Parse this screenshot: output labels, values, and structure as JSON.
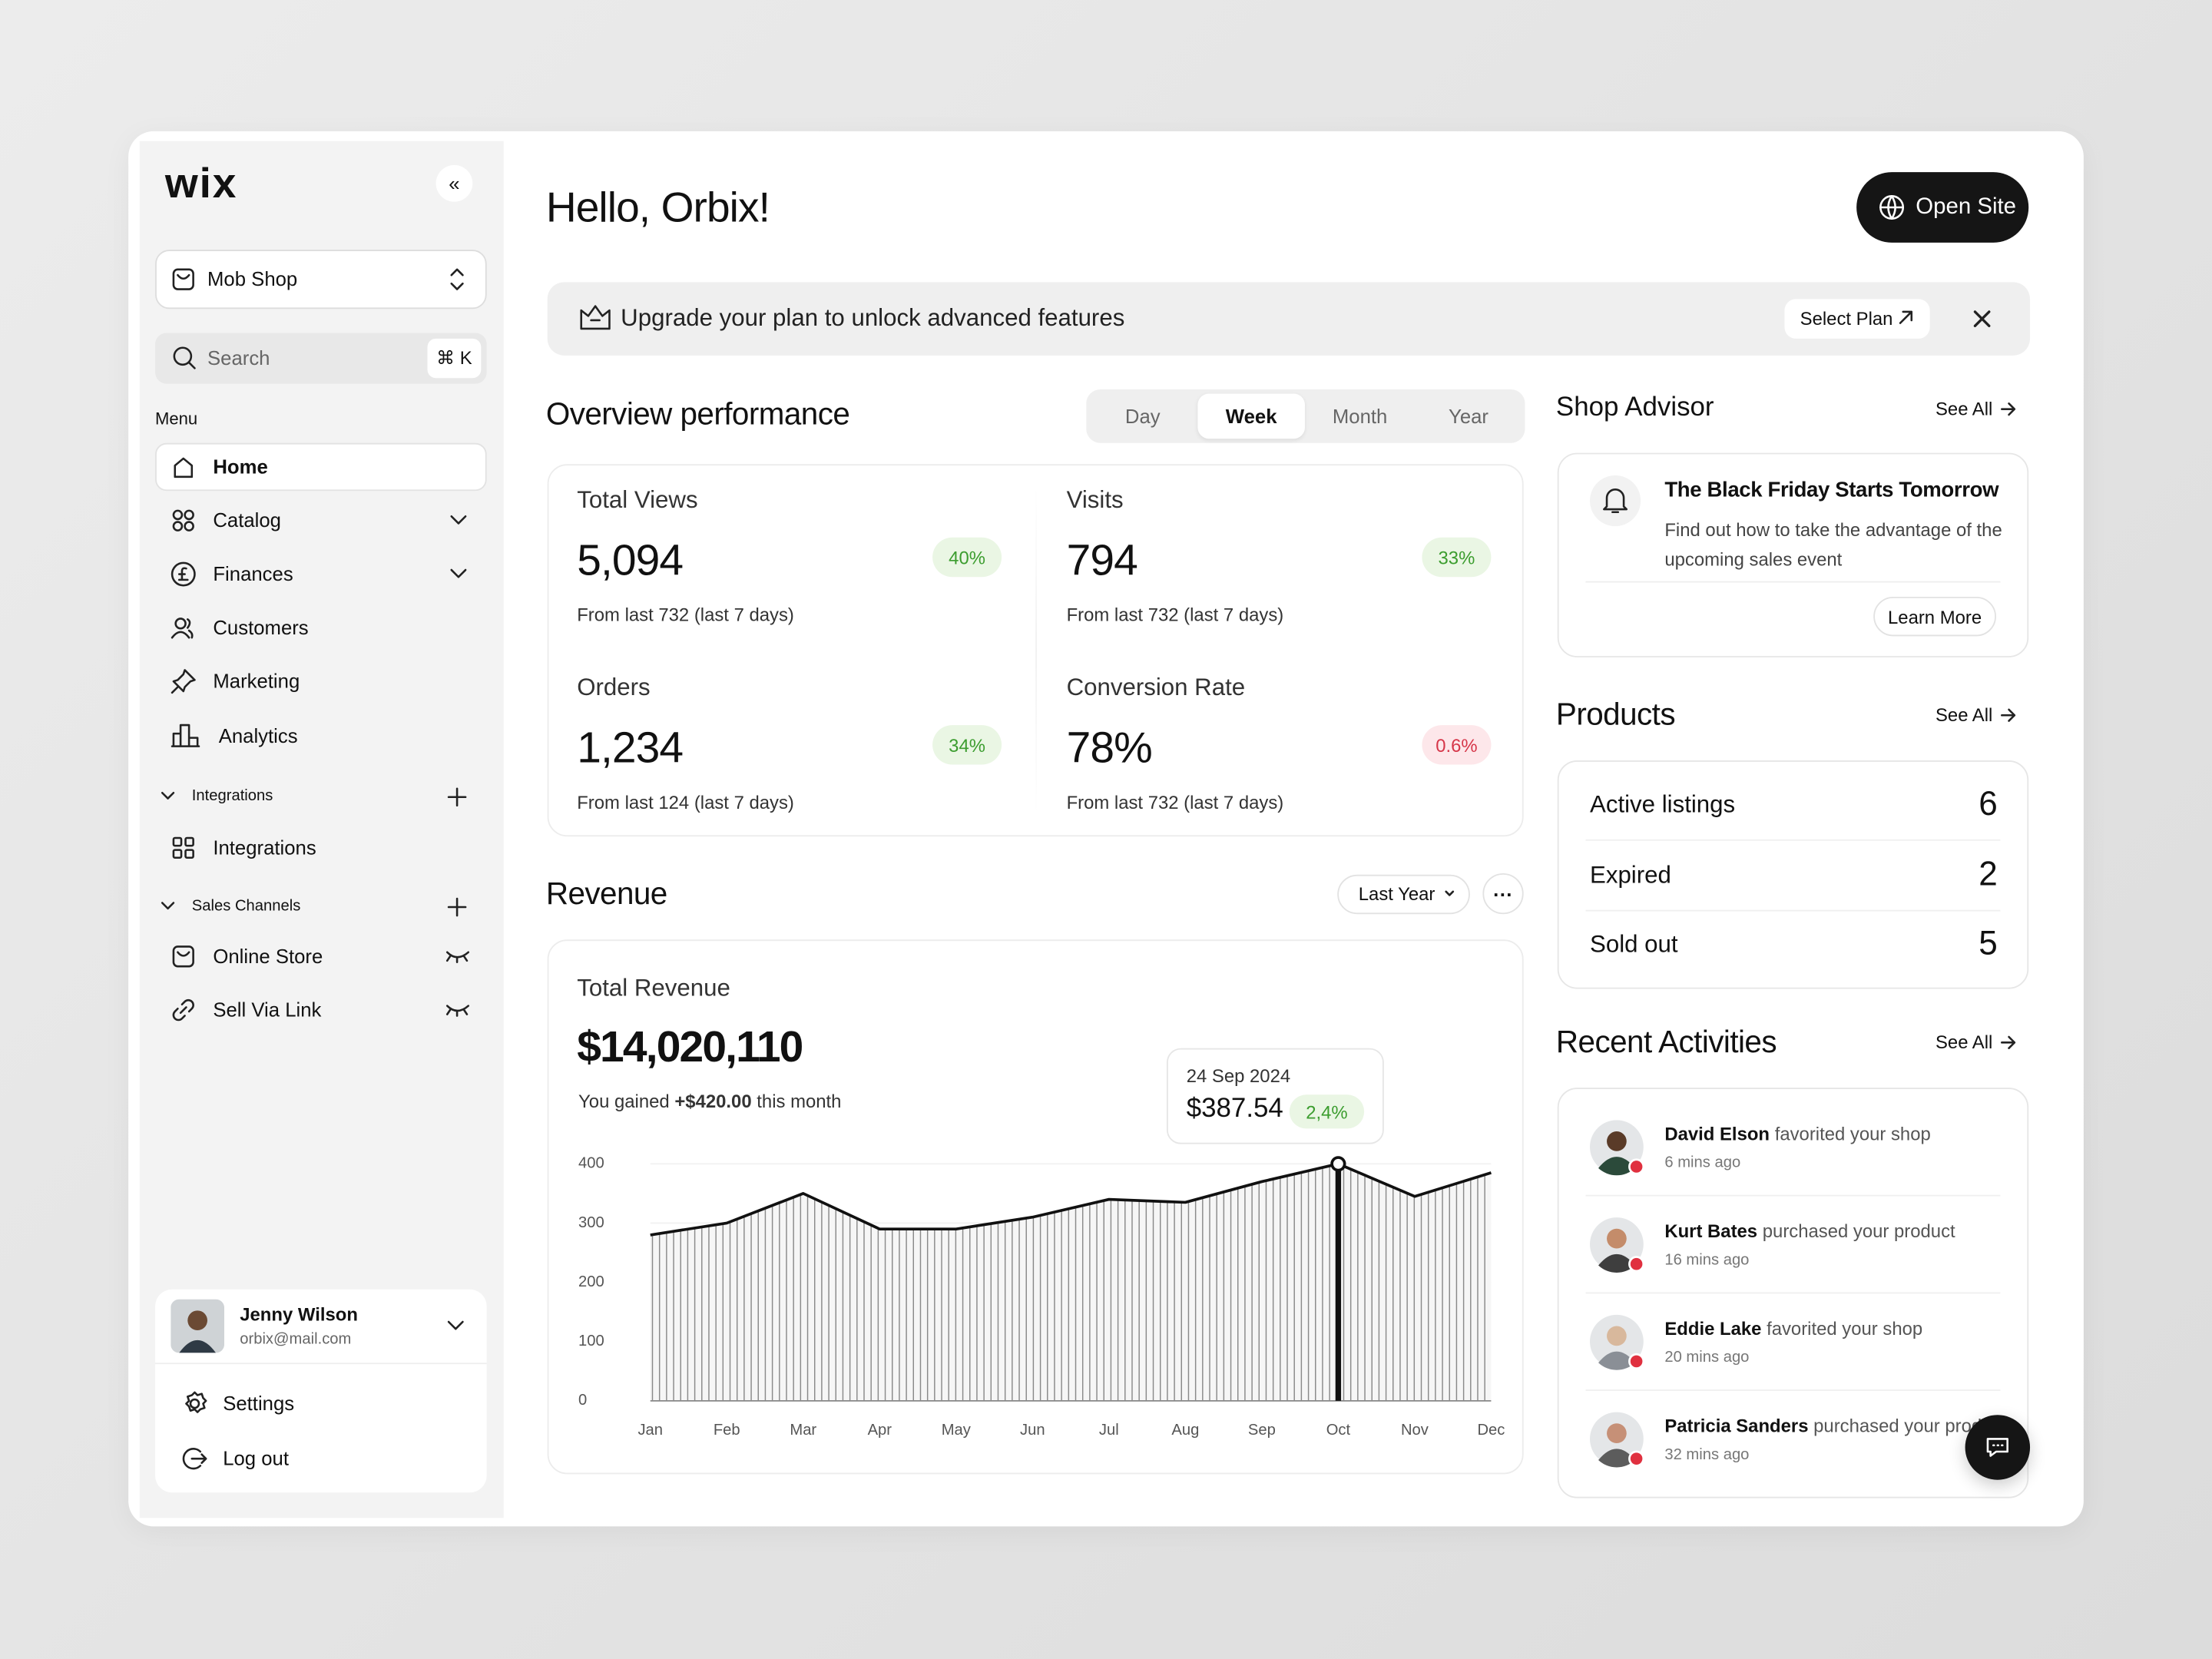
{
  "sidebar": {
    "logo": "wix",
    "shop": "Mob Shop",
    "search": "Search",
    "shortcut": "⌘ K",
    "menu_label": "Menu",
    "menu": [
      "Home",
      "Catalog",
      "Finances",
      "Customers",
      "Marketing",
      "Analytics"
    ],
    "integrations_label": "Integrations",
    "integrations": [
      "Integrations"
    ],
    "sales_label": "Sales Channels",
    "sales": [
      "Online Store",
      "Sell Via Link"
    ],
    "user": {
      "name": "Jenny Wilson",
      "email": "orbix@mail.com"
    },
    "settings": "Settings",
    "logout": "Log out"
  },
  "header": {
    "greeting": "Hello, Orbix!",
    "open_site": "Open Site"
  },
  "banner": {
    "text": "Upgrade your plan to unlock advanced features",
    "button": "Select Plan"
  },
  "overview": {
    "title": "Overview performance",
    "tabs": [
      "Day",
      "Week",
      "Month",
      "Year"
    ],
    "active_tab": "Week",
    "stats": [
      {
        "label": "Total Views",
        "value": "5,094",
        "change": "40%",
        "trend": "up",
        "note": "From last 732 (last 7 days)"
      },
      {
        "label": "Visits",
        "value": "794",
        "change": "33%",
        "trend": "up",
        "note": "From last 732 (last 7 days)"
      },
      {
        "label": "Orders",
        "value": "1,234",
        "change": "34%",
        "trend": "up",
        "note": "From last 124 (last 7 days)"
      },
      {
        "label": "Conversion Rate",
        "value": "78%",
        "change": "0.6%",
        "trend": "down",
        "note": "From last 732 (last 7 days)"
      }
    ]
  },
  "revenue": {
    "title": "Revenue",
    "period": "Last Year",
    "card_title": "Total Revenue",
    "total": "$14,020,110",
    "gain_prefix": "You gained",
    "gain": "+$420.00",
    "gain_suffix": "this month",
    "tooltip": {
      "date": "24 Sep 2024",
      "value": "$387.54",
      "change": "2,4%"
    },
    "chart": {
      "type": "area",
      "categories": [
        "Jan",
        "Feb",
        "Mar",
        "Apr",
        "May",
        "Jun",
        "Jul",
        "Aug",
        "Sep",
        "Oct",
        "Nov",
        "Dec"
      ],
      "values": [
        280,
        300,
        350,
        290,
        290,
        310,
        340,
        335,
        370,
        400,
        345,
        385
      ],
      "highlight": "Oct",
      "color": "#111111",
      "ylim": [
        0,
        400
      ],
      "yticks": [
        0,
        100,
        200,
        300,
        400
      ]
    }
  },
  "shop_advisor": {
    "title": "Shop Advisor",
    "see_all": "See All",
    "headline": "The Black Friday Starts Tomorrow",
    "text": "Find out how to take the advantage of the upcoming sales event",
    "button": "Learn More"
  },
  "products": {
    "title": "Products",
    "see_all": "See All",
    "rows": [
      {
        "label": "Active listings",
        "value": "6"
      },
      {
        "label": "Expired",
        "value": "2"
      },
      {
        "label": "Sold out",
        "value": "5"
      }
    ]
  },
  "activities": {
    "title": "Recent Activities",
    "see_all": "See All",
    "items": [
      {
        "name": "David Elson",
        "action": "favorited your shop",
        "time": "6 mins ago"
      },
      {
        "name": "Kurt Bates",
        "action": "purchased your product",
        "time": "16 mins ago"
      },
      {
        "name": "Eddie Lake",
        "action": "favorited your shop",
        "time": "20 mins ago"
      },
      {
        "name": "Patricia Sanders",
        "action": "purchased your product",
        "time": "32 mins ago"
      }
    ]
  }
}
